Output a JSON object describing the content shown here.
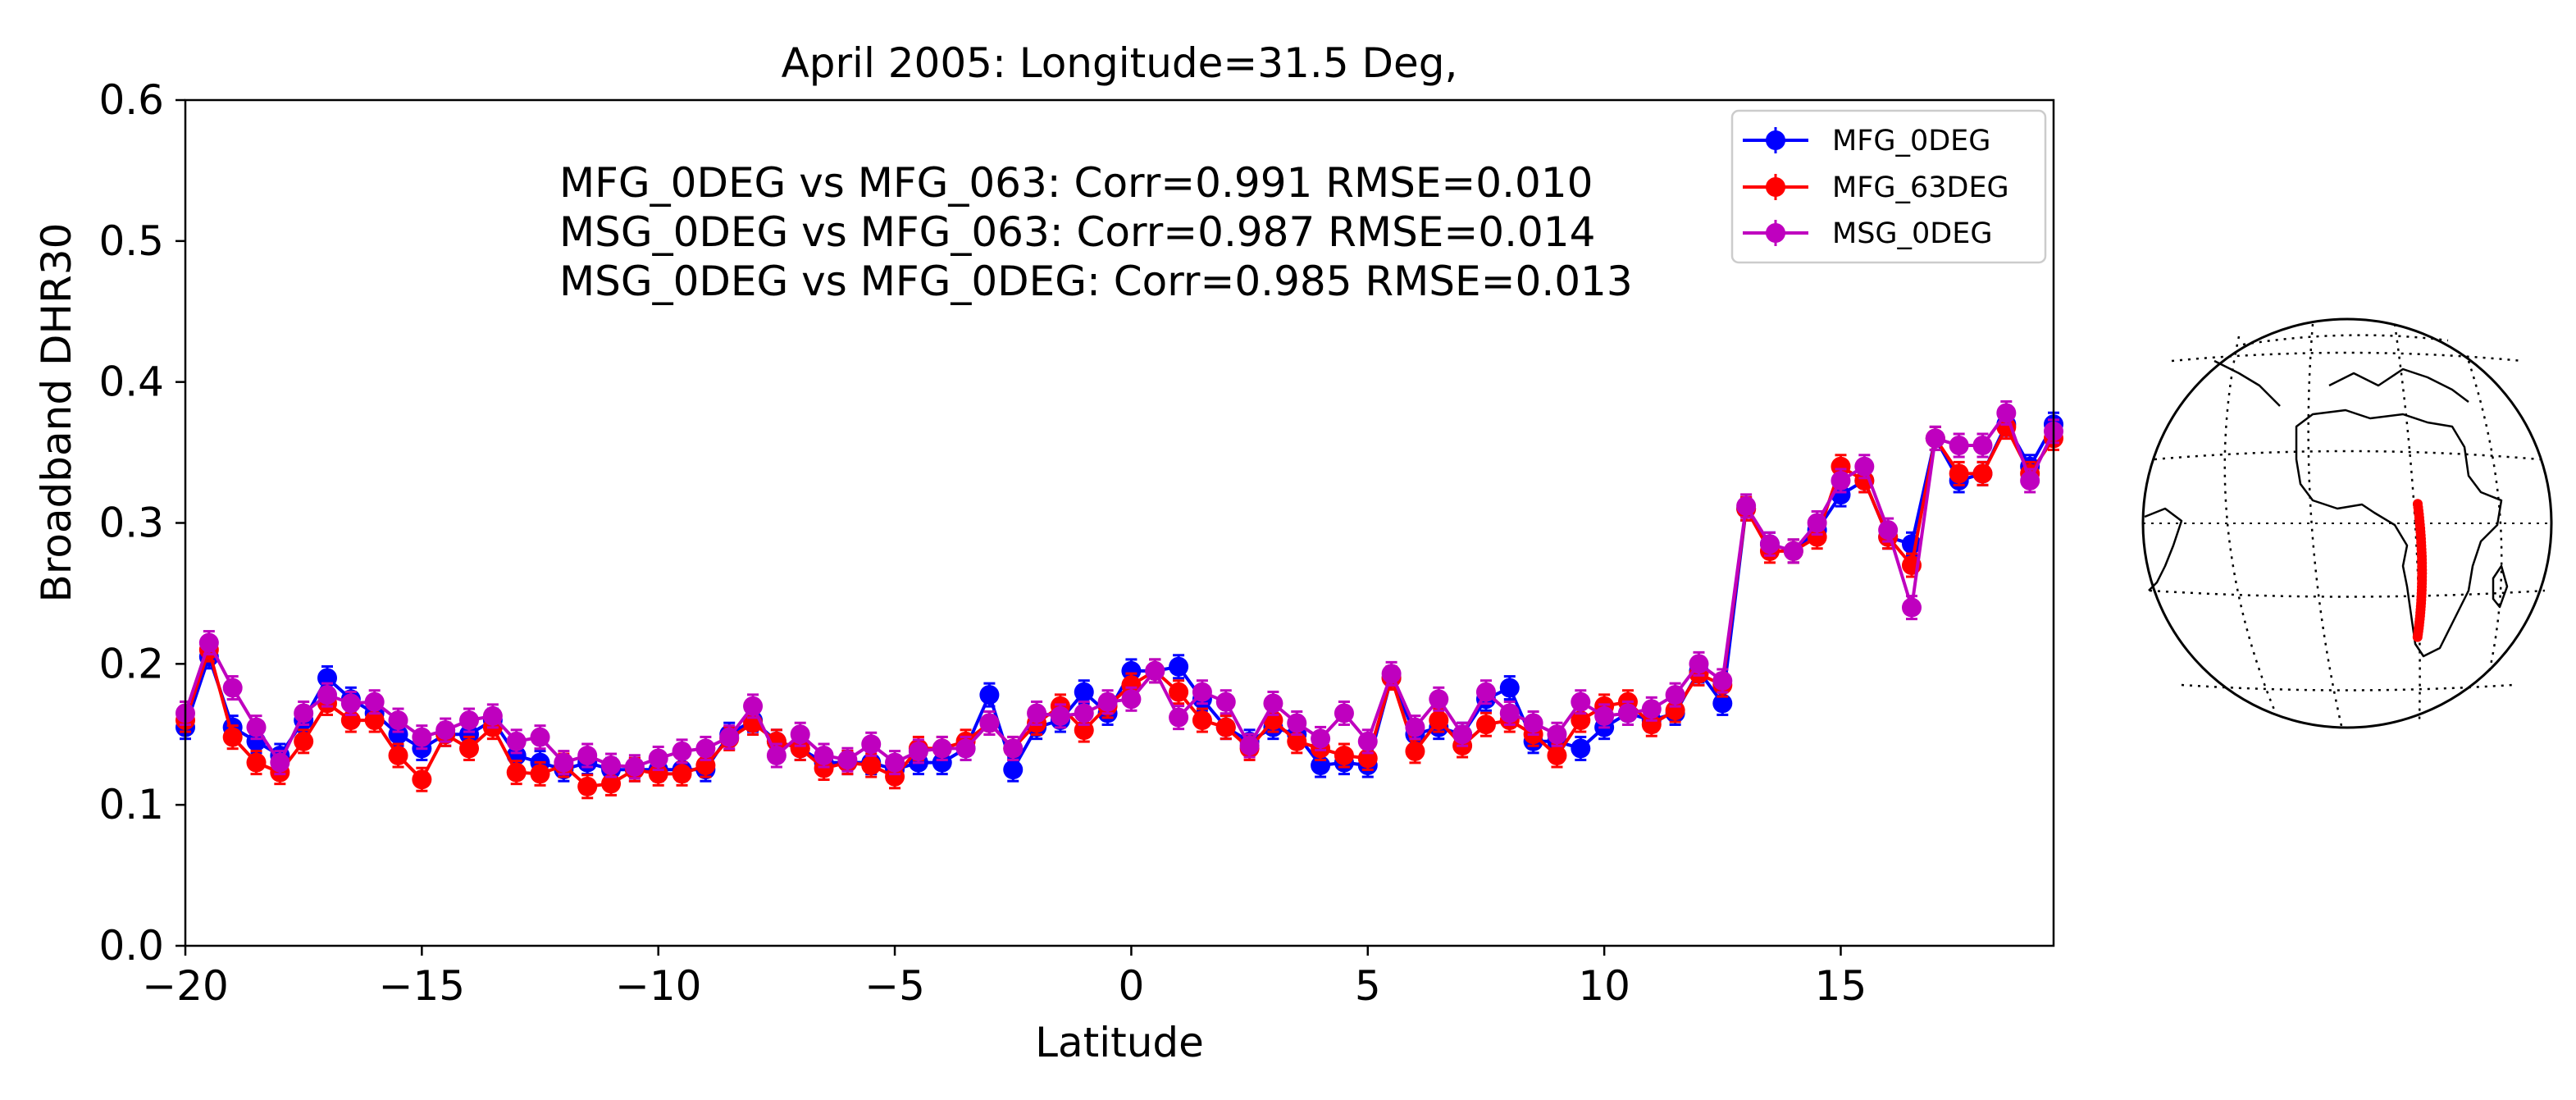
{
  "chart_data": {
    "type": "line",
    "title": "April 2005: Longitude=31.5 Deg,",
    "xlabel": "Latitude",
    "ylabel": "Broadband DHR30",
    "xlim": [
      -20,
      19.5
    ],
    "ylim": [
      0.0,
      0.6
    ],
    "xticks": [
      -20,
      -15,
      -10,
      -5,
      0,
      5,
      10,
      15
    ],
    "xtick_labels": [
      "−20",
      "−15",
      "−10",
      "−5",
      "0",
      "5",
      "10",
      "15"
    ],
    "yticks": [
      0.0,
      0.1,
      0.2,
      0.3,
      0.4,
      0.5,
      0.6
    ],
    "ytick_labels": [
      "0.0",
      "0.1",
      "0.2",
      "0.3",
      "0.4",
      "0.5",
      "0.6"
    ],
    "legend_position": "top-right",
    "annotations": [
      "MFG_0DEG vs MFG_063: Corr=0.991 RMSE=0.010",
      "MSG_0DEG vs MFG_063: Corr=0.987 RMSE=0.014",
      "MSG_0DEG vs MFG_0DEG: Corr=0.985 RMSE=0.013"
    ],
    "x": [
      -20,
      -19.5,
      -19,
      -18.5,
      -18,
      -17.5,
      -17,
      -16.5,
      -16,
      -15.5,
      -15,
      -14.5,
      -14,
      -13.5,
      -13,
      -12.5,
      -12,
      -11.5,
      -11,
      -10.5,
      -10,
      -9.5,
      -9,
      -8.5,
      -8,
      -7.5,
      -7,
      -6.5,
      -6,
      -5.5,
      -5,
      -4.5,
      -4,
      -3.5,
      -3,
      -2.5,
      -2,
      -1.5,
      -1,
      -0.5,
      0,
      0.5,
      1,
      1.5,
      2,
      2.5,
      3,
      3.5,
      4,
      4.5,
      5,
      5.5,
      6,
      6.5,
      7,
      7.5,
      8,
      8.5,
      9,
      9.5,
      10,
      10.5,
      11,
      11.5,
      12,
      12.5,
      13,
      13.5,
      14,
      14.5,
      15,
      15.5,
      16,
      16.5,
      17,
      17.5,
      18,
      18.5,
      19,
      19.5
    ],
    "series": [
      {
        "name": "MFG_0DEG",
        "color": "#0000ff",
        "values": [
          0.155,
          0.205,
          0.155,
          0.145,
          0.135,
          0.16,
          0.19,
          0.175,
          0.165,
          0.15,
          0.14,
          0.15,
          0.15,
          0.16,
          0.135,
          0.13,
          0.125,
          0.13,
          0.125,
          0.125,
          0.125,
          0.125,
          0.125,
          0.15,
          0.16,
          0.145,
          0.14,
          0.13,
          0.13,
          0.13,
          0.125,
          0.13,
          0.13,
          0.14,
          0.178,
          0.125,
          0.155,
          0.16,
          0.18,
          0.165,
          0.195,
          0.195,
          0.198,
          0.175,
          0.155,
          0.145,
          0.155,
          0.15,
          0.128,
          0.13,
          0.128,
          0.19,
          0.15,
          0.155,
          0.15,
          0.175,
          0.183,
          0.145,
          0.145,
          0.14,
          0.155,
          0.165,
          0.16,
          0.165,
          0.195,
          0.172,
          0.31,
          0.285,
          0.28,
          0.295,
          0.32,
          0.33,
          0.29,
          0.285,
          0.36,
          0.33,
          0.335,
          0.37,
          0.34,
          0.37
        ]
      },
      {
        "name": "MFG_63DEG",
        "color": "#ff0000",
        "values": [
          0.16,
          0.21,
          0.148,
          0.13,
          0.123,
          0.145,
          0.172,
          0.16,
          0.16,
          0.135,
          0.118,
          0.15,
          0.14,
          0.155,
          0.123,
          0.122,
          0.128,
          0.113,
          0.115,
          0.125,
          0.122,
          0.122,
          0.128,
          0.147,
          0.158,
          0.145,
          0.14,
          0.126,
          0.13,
          0.128,
          0.12,
          0.14,
          0.14,
          0.145,
          0.158,
          0.14,
          0.158,
          0.17,
          0.153,
          0.17,
          0.185,
          0.195,
          0.18,
          0.16,
          0.155,
          0.14,
          0.16,
          0.145,
          0.14,
          0.135,
          0.133,
          0.19,
          0.138,
          0.16,
          0.142,
          0.157,
          0.16,
          0.15,
          0.135,
          0.16,
          0.17,
          0.173,
          0.157,
          0.167,
          0.193,
          0.185,
          0.31,
          0.28,
          0.28,
          0.29,
          0.34,
          0.33,
          0.29,
          0.27,
          0.36,
          0.335,
          0.335,
          0.368,
          0.335,
          0.36
        ]
      },
      {
        "name": "MSG_0DEG",
        "color": "#bf00bf",
        "values": [
          0.165,
          0.215,
          0.183,
          0.155,
          0.13,
          0.165,
          0.178,
          0.172,
          0.173,
          0.16,
          0.148,
          0.153,
          0.16,
          0.163,
          0.145,
          0.148,
          0.13,
          0.135,
          0.128,
          0.127,
          0.133,
          0.138,
          0.14,
          0.148,
          0.17,
          0.135,
          0.15,
          0.135,
          0.132,
          0.143,
          0.13,
          0.138,
          0.14,
          0.14,
          0.158,
          0.14,
          0.165,
          0.163,
          0.165,
          0.173,
          0.175,
          0.195,
          0.162,
          0.18,
          0.173,
          0.142,
          0.172,
          0.158,
          0.147,
          0.165,
          0.145,
          0.193,
          0.155,
          0.175,
          0.15,
          0.18,
          0.165,
          0.158,
          0.15,
          0.173,
          0.163,
          0.165,
          0.168,
          0.178,
          0.2,
          0.188,
          0.312,
          0.285,
          0.28,
          0.3,
          0.33,
          0.34,
          0.295,
          0.24,
          0.36,
          0.355,
          0.355,
          0.378,
          0.33,
          0.365
        ]
      }
    ],
    "inset": {
      "type": "orthographic-globe",
      "highlight_color": "#ff0000",
      "highlight_longitude_deg": 31.5,
      "highlight_latitude_range": [
        -20,
        19.5
      ]
    }
  }
}
